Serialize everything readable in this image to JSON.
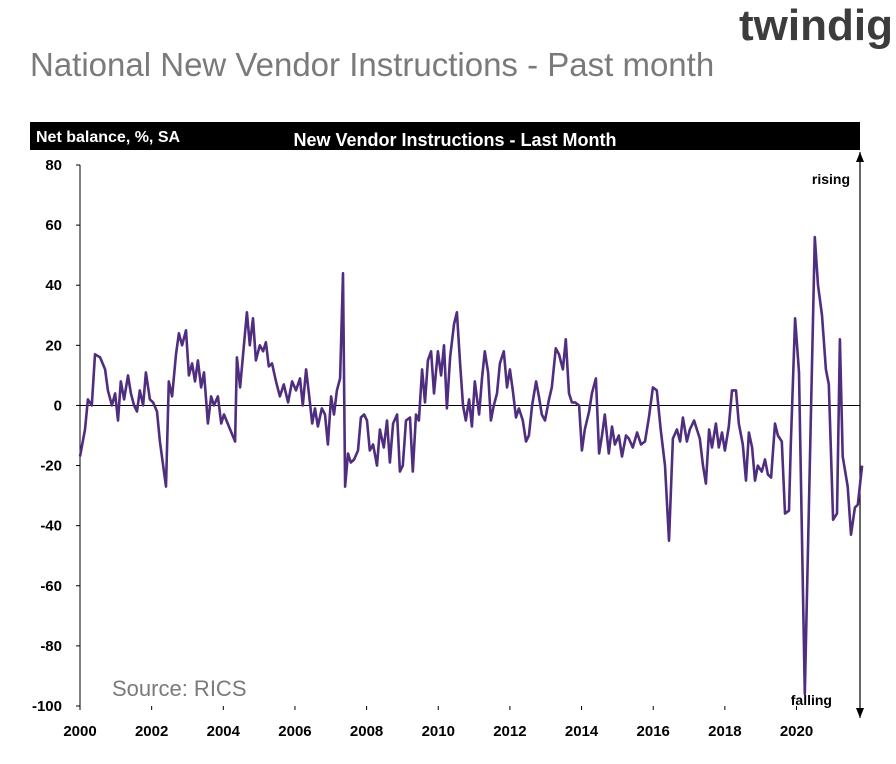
{
  "header": {
    "logo": "twindig",
    "title": "National New Vendor Instructions - Past month"
  },
  "chart_data": {
    "type": "line",
    "title": "New Vendor Instructions - Last Month",
    "y_label": "Net balance, %, SA",
    "annotations": [
      "rising",
      "falling",
      "Source: RICS"
    ],
    "xlim": [
      2000,
      2021.8
    ],
    "xticks": [
      2000,
      2002,
      2004,
      2006,
      2008,
      2010,
      2012,
      2014,
      2016,
      2018,
      2020
    ],
    "ylim": [
      -100,
      80
    ],
    "yticks": [
      -100,
      -80,
      -60,
      -40,
      -20,
      0,
      20,
      40,
      60,
      80
    ],
    "x": [
      2000.0,
      2000.14,
      2000.22,
      2000.33,
      2000.42,
      2000.56,
      2000.7,
      2000.78,
      2000.89,
      2000.98,
      2001.06,
      2001.14,
      2001.23,
      2001.34,
      2001.42,
      2001.51,
      2001.59,
      2001.67,
      2001.76,
      2001.84,
      2001.95,
      2002.04,
      2002.15,
      2002.23,
      2002.4,
      2002.48,
      2002.57,
      2002.68,
      2002.76,
      2002.85,
      2002.96,
      2003.04,
      2003.13,
      2003.21,
      2003.29,
      2003.38,
      2003.46,
      2003.57,
      2003.66,
      2003.74,
      2003.85,
      2003.94,
      2004.02,
      2004.33,
      2004.38,
      2004.47,
      2004.66,
      2004.74,
      2004.83,
      2004.91,
      2005.02,
      2005.11,
      2005.19,
      2005.27,
      2005.36,
      2005.47,
      2005.58,
      2005.69,
      2005.81,
      2005.92,
      2006.03,
      2006.14,
      2006.22,
      2006.31,
      2006.39,
      2006.48,
      2006.56,
      2006.64,
      2006.75,
      2006.84,
      2006.92,
      2007.01,
      2007.09,
      2007.17,
      2007.26,
      2007.34,
      2007.4,
      2007.48,
      2007.56,
      2007.65,
      2007.76,
      2007.84,
      2007.93,
      2008.01,
      2008.09,
      2008.18,
      2008.29,
      2008.37,
      2008.48,
      2008.57,
      2008.65,
      2008.74,
      2008.85,
      2008.93,
      2009.01,
      2009.1,
      2009.21,
      2009.29,
      2009.38,
      2009.46,
      2009.55,
      2009.63,
      2009.71,
      2009.8,
      2009.88,
      2009.99,
      2010.08,
      2010.16,
      2010.24,
      2010.33,
      2010.44,
      2010.52,
      2010.61,
      2010.69,
      2010.77,
      2010.86,
      2010.94,
      2011.02,
      2011.14,
      2011.22,
      2011.3,
      2011.39,
      2011.47,
      2011.55,
      2011.64,
      2011.72,
      2011.83,
      2011.92,
      2012.0,
      2012.08,
      2012.17,
      2012.25,
      2012.36,
      2012.45,
      2012.53,
      2012.62,
      2012.73,
      2012.81,
      2012.89,
      2012.98,
      2013.09,
      2013.17,
      2013.28,
      2013.37,
      2013.48,
      2013.56,
      2013.65,
      2013.73,
      2013.82,
      2013.93,
      2014.01,
      2014.09,
      2014.21,
      2014.29,
      2014.4,
      2014.49,
      2014.57,
      2014.65,
      2014.76,
      2014.85,
      2014.93,
      2015.04,
      2015.13,
      2015.24,
      2015.32,
      2015.43,
      2015.55,
      2015.66,
      2015.77,
      2015.88,
      2015.99,
      2016.1,
      2016.21,
      2016.33,
      2016.44,
      2016.55,
      2016.66,
      2016.75,
      2016.83,
      2016.94,
      2017.02,
      2017.14,
      2017.22,
      2017.3,
      2017.39,
      2017.47,
      2017.56,
      2017.64,
      2017.75,
      2017.83,
      2017.92,
      2018.0,
      2018.11,
      2018.2,
      2018.31,
      2018.39,
      2018.5,
      2018.59,
      2018.67,
      2018.76,
      2018.84,
      2018.92,
      2019.03,
      2019.12,
      2019.2,
      2019.29,
      2019.4,
      2019.48,
      2019.59,
      2019.68,
      2019.79,
      2019.84,
      2019.96,
      2020.07,
      2020.23,
      2020.51,
      2020.6,
      2020.71,
      2020.82,
      2020.9,
      2021.02,
      2021.13,
      2021.21,
      2021.29,
      2021.43,
      2021.52,
      2021.63,
      2021.71,
      2021.83
    ],
    "series": [
      {
        "name": "New Vendor Instructions",
        "color": "#4f2d7f",
        "values": [
          -17,
          -8,
          2,
          0,
          17,
          16,
          12,
          5,
          0,
          4,
          -5,
          8,
          2,
          10,
          4,
          0,
          -2,
          5,
          0,
          11,
          2,
          1,
          -2,
          -12,
          -27,
          8,
          3,
          17,
          24,
          20,
          25,
          10,
          14,
          8,
          15,
          6,
          11,
          -6,
          3,
          0,
          3,
          -6,
          -3,
          -12,
          16,
          6,
          31,
          20,
          29,
          15,
          20,
          18,
          21,
          13,
          14,
          8,
          3,
          7,
          1,
          8,
          5,
          9,
          0,
          12,
          4,
          -6,
          -1,
          -7,
          -1,
          -3,
          -13,
          3,
          -3,
          5,
          9,
          44,
          -27,
          -16,
          -19,
          -18,
          -15,
          -4,
          -3,
          -5,
          -15,
          -13,
          -20,
          -8,
          -14,
          -5,
          -19,
          -6,
          -3,
          -22,
          -20,
          -5,
          -4,
          -22,
          -3,
          -5,
          12,
          1,
          15,
          18,
          4,
          18,
          10,
          20,
          -1,
          16,
          27,
          31,
          14,
          0,
          -5,
          2,
          -7,
          8,
          -3,
          9,
          18,
          11,
          -5,
          0,
          4,
          14,
          18,
          6,
          12,
          5,
          -4,
          -1,
          -5,
          -12,
          -10,
          0,
          8,
          3,
          -3,
          -5,
          2,
          6,
          19,
          17,
          12,
          22,
          4,
          1,
          1,
          0,
          -15,
          -8,
          -2,
          4,
          9,
          -16,
          -10,
          -3,
          -16,
          -7,
          -13,
          -10,
          -17,
          -10,
          -11,
          -14,
          -9,
          -13,
          -12,
          -4,
          6,
          5,
          -8,
          -20,
          -45,
          -11,
          -8,
          -12,
          -4,
          -12,
          -8,
          -5,
          -8,
          -11,
          -20,
          -26,
          -8,
          -14,
          -6,
          -14,
          -9,
          -15,
          -7,
          5,
          5,
          -6,
          -13,
          -25,
          -9,
          -14,
          -25,
          -20,
          -22,
          -18,
          -23,
          -24,
          -6,
          -10,
          -12,
          -36,
          -35,
          -13,
          29,
          11,
          -96,
          56,
          40,
          30,
          12,
          7,
          -38,
          -36,
          22,
          -17,
          -27,
          -43,
          -34,
          -33,
          -20
        ]
      }
    ]
  }
}
